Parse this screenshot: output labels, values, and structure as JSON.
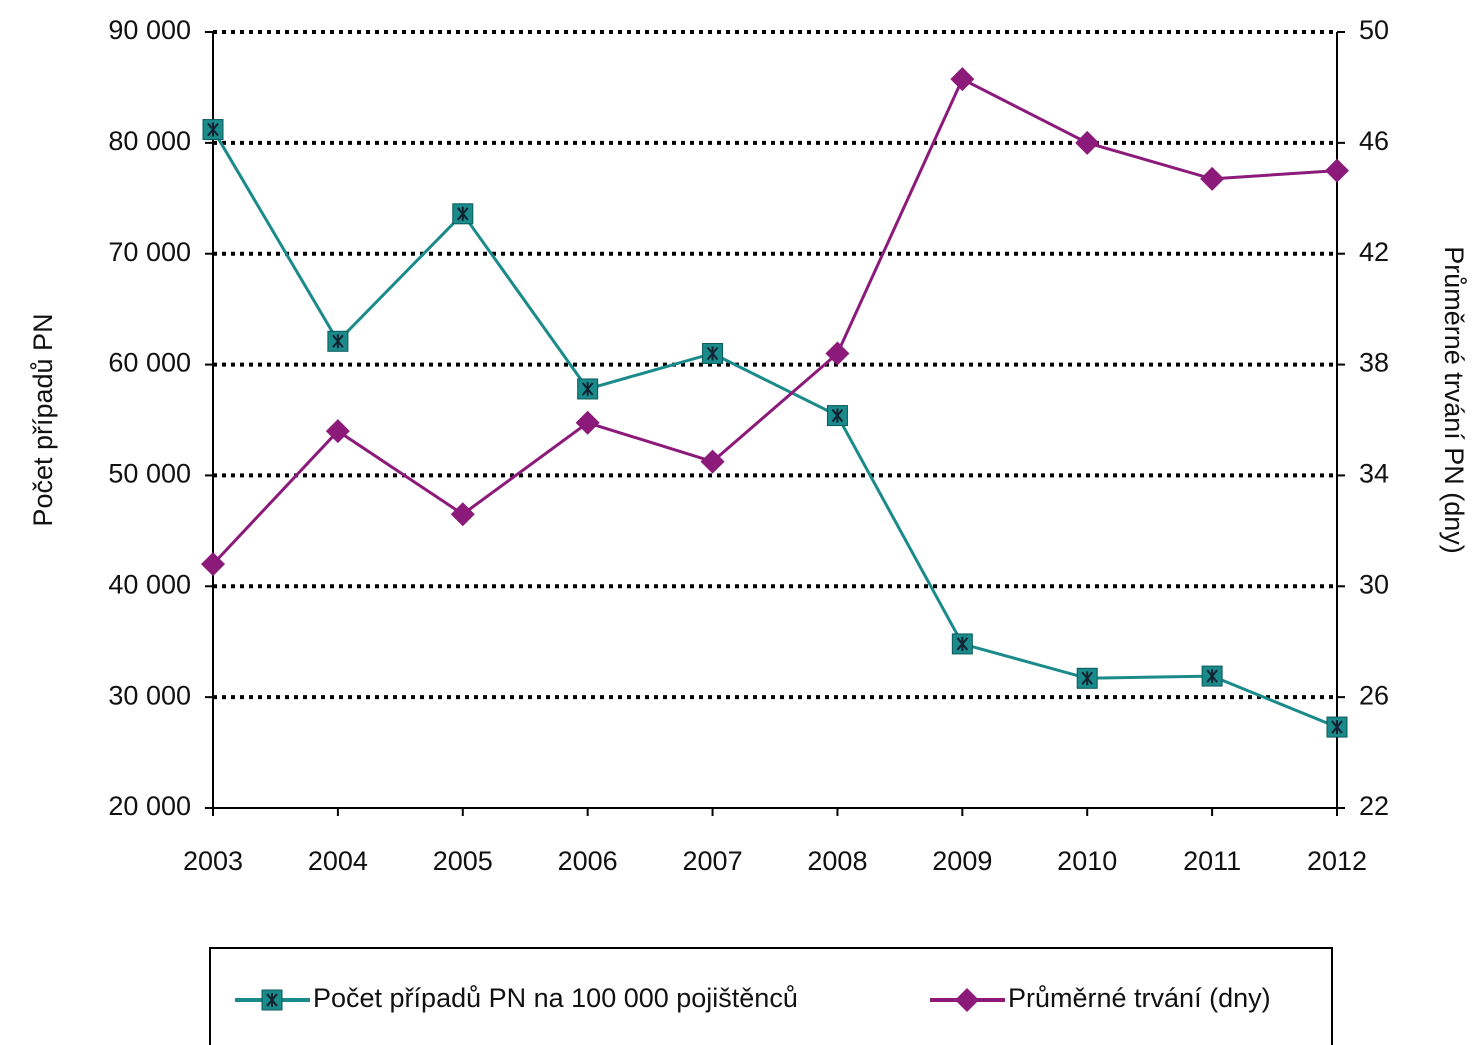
{
  "chart_data": {
    "type": "line",
    "categories": [
      "2003",
      "2004",
      "2005",
      "2006",
      "2007",
      "2008",
      "2009",
      "2010",
      "2011",
      "2012"
    ],
    "y_label": "Počet případů PN",
    "y2_label": "Průměrné trvání PN (dny)",
    "series": [
      {
        "name": "Počet případů PN na 100 000 pojištěnců",
        "color": "#1a8a8a",
        "marker": "square",
        "values": [
          81200,
          62100,
          73600,
          57800,
          61000,
          55400,
          34800,
          31700,
          31900,
          27300
        ]
      },
      {
        "name": "Průměrné trvání (dny)",
        "color": "#8b1a7a",
        "marker": "diamond",
        "axis": "y2",
        "values": [
          30.8,
          35.6,
          32.6,
          35.9,
          34.5,
          38.4,
          48.3,
          46.0,
          44.7,
          45.0
        ]
      }
    ],
    "ylim": [
      20000,
      90000
    ],
    "yticks": [
      {
        "value": 20000,
        "label": "20 000"
      },
      {
        "value": 30000,
        "label": "30 000"
      },
      {
        "value": 40000,
        "label": "40 000"
      },
      {
        "value": 50000,
        "label": "50 000"
      },
      {
        "value": 60000,
        "label": "60 000"
      },
      {
        "value": 70000,
        "label": "70 000"
      },
      {
        "value": 80000,
        "label": "80 000"
      },
      {
        "value": 90000,
        "label": "90 000"
      }
    ],
    "y2lim": [
      22,
      50
    ],
    "y2ticks": [
      22,
      26,
      30,
      34,
      38,
      42,
      46,
      50
    ],
    "grid": true,
    "legend": "bottom"
  }
}
